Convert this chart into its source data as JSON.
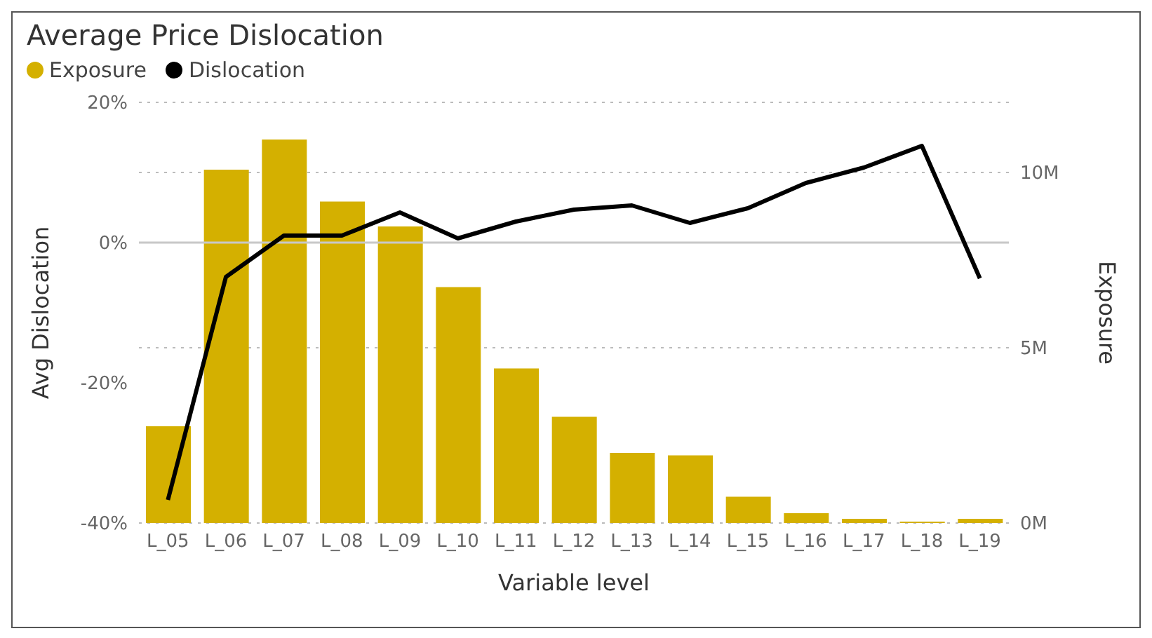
{
  "chart_data": {
    "type": "bar",
    "title": "Average Price Dislocation",
    "xlabel": "Variable level",
    "ylabel": "Avg Dislocation",
    "y2label": "Exposure",
    "categories": [
      "L_05",
      "L_06",
      "L_07",
      "L_08",
      "L_09",
      "L_10",
      "L_11",
      "L_12",
      "L_13",
      "L_14",
      "L_15",
      "L_16",
      "L_17",
      "L_18",
      "L_19"
    ],
    "series": [
      {
        "name": "Exposure",
        "axis": "y2",
        "color": "#d4b000",
        "values": [
          2.76,
          10.08,
          10.94,
          9.17,
          8.46,
          6.73,
          4.41,
          3.03,
          2.0,
          1.93,
          0.75,
          0.28,
          0.12,
          0.04,
          0.12
        ]
      },
      {
        "name": "Dislocation",
        "type": "line",
        "color": "#000000",
        "values": [
          -36.7,
          -4.9,
          1.0,
          1.0,
          4.3,
          0.6,
          3.0,
          4.7,
          5.3,
          2.8,
          4.9,
          8.5,
          10.7,
          13.8,
          -5.1
        ]
      }
    ],
    "ylim": [
      -40,
      20
    ],
    "yticks": [
      {
        "value": -40,
        "label": "-40%"
      },
      {
        "value": -20,
        "label": "-20%"
      },
      {
        "value": 0,
        "label": "0%"
      },
      {
        "value": 20,
        "label": "20%"
      }
    ],
    "y2lim": [
      0,
      12
    ],
    "y2ticks": [
      {
        "value": 0,
        "label": "0M"
      },
      {
        "value": 5,
        "label": "5M"
      },
      {
        "value": 10,
        "label": "10M"
      }
    ],
    "ref_lines": [
      {
        "axis": "y",
        "value": 0,
        "color": "#c8c8c8"
      }
    ],
    "grid": "y",
    "legend": "top left",
    "marker": "none"
  }
}
